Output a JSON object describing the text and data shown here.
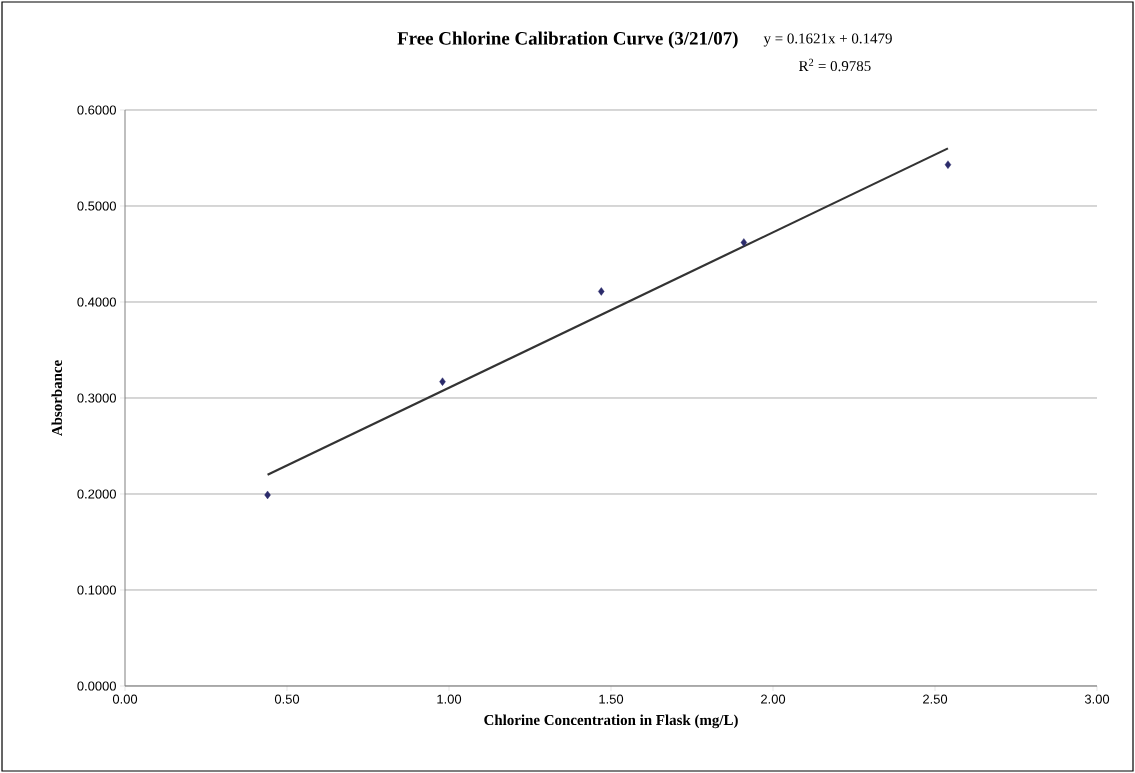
{
  "chart_data": {
    "type": "scatter",
    "title": "Free Chlorine Calibration Curve (3/21/07)",
    "xlabel": "Chlorine Concentration in Flask (mg/L)",
    "ylabel": "Absorbance",
    "annotations": [
      "y = 0.1621x + 0.1479",
      "R$^{2}$ = 0.9785"
    ],
    "series": [
      {
        "color": "#2b2b6b",
        "marker": "diamond",
        "x": [
          0.44,
          0.98,
          1.47,
          1.91,
          2.54
        ],
        "values": [
          0.199,
          0.317,
          0.411,
          0.462,
          0.543
        ]
      },
      {
        "type": "line",
        "color": "#333333",
        "marker": "none",
        "line_style": "solid",
        "x": [
          0.44,
          2.54
        ],
        "values": [
          0.22,
          0.56
        ]
      }
    ],
    "xlim": [
      0,
      3
    ],
    "ylim": [
      0,
      0.6
    ],
    "xticks": [
      {
        "value": 0,
        "label": "0.00"
      },
      {
        "value": 0.5,
        "label": "0.50"
      },
      {
        "value": 1,
        "label": "1.00"
      },
      {
        "value": 1.5,
        "label": "1.50"
      },
      {
        "value": 2,
        "label": "2.00"
      },
      {
        "value": 2.5,
        "label": "2.50"
      },
      {
        "value": 3,
        "label": "3.00"
      }
    ],
    "yticks": [
      {
        "value": 0,
        "label": "0.0000"
      },
      {
        "value": 0.1,
        "label": "0.1000"
      },
      {
        "value": 0.2,
        "label": "0.2000"
      },
      {
        "value": 0.3,
        "label": "0.3000"
      },
      {
        "value": 0.4,
        "label": "0.4000"
      },
      {
        "value": 0.5,
        "label": "0.5000"
      },
      {
        "value": 0.6,
        "label": "0.6000"
      }
    ],
    "grid": "y"
  }
}
